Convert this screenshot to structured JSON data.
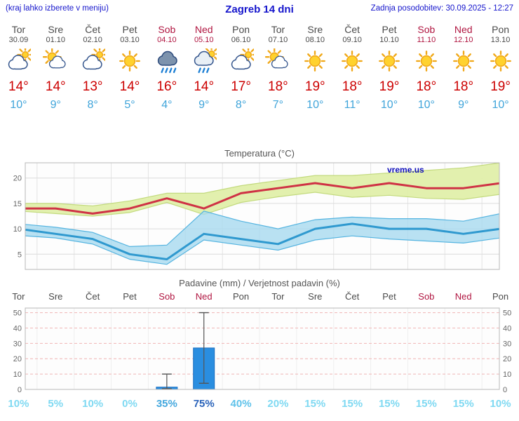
{
  "header": {
    "left_note": "(kraj lahko izberete v meniju)",
    "title": "Zagreb 14 dni",
    "last_update": "Zadnja posodobitev: 30.09.2025 - 12:27"
  },
  "days": [
    {
      "name": "Tor",
      "date": "30.09",
      "weekend": false,
      "icon": "cloud-sun",
      "tmax": "14°",
      "tmin": "10°"
    },
    {
      "name": "Sre",
      "date": "01.10",
      "weekend": false,
      "icon": "sun-cloud",
      "tmax": "14°",
      "tmin": "9°"
    },
    {
      "name": "Čet",
      "date": "02.10",
      "weekend": false,
      "icon": "cloud-sun",
      "tmax": "13°",
      "tmin": "8°"
    },
    {
      "name": "Pet",
      "date": "03.10",
      "weekend": false,
      "icon": "sun",
      "tmax": "14°",
      "tmin": "5°"
    },
    {
      "name": "Sob",
      "date": "04.10",
      "weekend": true,
      "icon": "rain",
      "tmax": "16°",
      "tmin": "4°"
    },
    {
      "name": "Ned",
      "date": "05.10",
      "weekend": true,
      "icon": "sun-rain",
      "tmax": "14°",
      "tmin": "9°"
    },
    {
      "name": "Pon",
      "date": "06.10",
      "weekend": false,
      "icon": "cloud-sun",
      "tmax": "17°",
      "tmin": "8°"
    },
    {
      "name": "Tor",
      "date": "07.10",
      "weekend": false,
      "icon": "sun-cloud",
      "tmax": "18°",
      "tmin": "7°"
    },
    {
      "name": "Sre",
      "date": "08.10",
      "weekend": false,
      "icon": "sun",
      "tmax": "19°",
      "tmin": "10°"
    },
    {
      "name": "Čet",
      "date": "09.10",
      "weekend": false,
      "icon": "sun",
      "tmax": "18°",
      "tmin": "11°"
    },
    {
      "name": "Pet",
      "date": "10.10",
      "weekend": false,
      "icon": "sun",
      "tmax": "19°",
      "tmin": "10°"
    },
    {
      "name": "Sob",
      "date": "11.10",
      "weekend": true,
      "icon": "sun",
      "tmax": "18°",
      "tmin": "10°"
    },
    {
      "name": "Ned",
      "date": "12.10",
      "weekend": true,
      "icon": "sun",
      "tmax": "18°",
      "tmin": "9°"
    },
    {
      "name": "Pon",
      "date": "13.10",
      "weekend": false,
      "icon": "sun",
      "tmax": "19°",
      "tmin": "10°"
    }
  ],
  "chart_data": [
    {
      "type": "line",
      "title": "Temperatura (°C)",
      "watermark": "vreme.us",
      "categories": [
        "Tor 30.09",
        "Sre 01.10",
        "Čet 02.10",
        "Pet 03.10",
        "Sob 04.10",
        "Ned 05.10",
        "Pon 06.10",
        "Tor 07.10",
        "Sre 08.10",
        "Čet 09.10",
        "Pet 10.10",
        "Sob 11.10",
        "Ned 12.10",
        "Pon 13.10"
      ],
      "ylim": [
        2,
        23
      ],
      "yticks": [
        5,
        10,
        15,
        20
      ],
      "legend": "off",
      "grid": "on",
      "series": [
        {
          "name": "max",
          "color": "#cf3245",
          "values": [
            14,
            14,
            13,
            14,
            16,
            14,
            17,
            18,
            19,
            18,
            19,
            18,
            18,
            19
          ]
        },
        {
          "name": "max_hi",
          "values": [
            15,
            15,
            14.5,
            15.5,
            17,
            17,
            18.5,
            19.5,
            20.5,
            20.5,
            21,
            21.5,
            22,
            23
          ]
        },
        {
          "name": "max_lo",
          "values": [
            13.5,
            13,
            12.5,
            13.2,
            15.2,
            12.8,
            15.2,
            16.3,
            17.2,
            16.2,
            16.6,
            16,
            15.8,
            16.8
          ]
        },
        {
          "name": "min",
          "color": "#2f99cf",
          "values": [
            10,
            9,
            8,
            5,
            4,
            9,
            8,
            7,
            10,
            11,
            10,
            10,
            9,
            10
          ]
        },
        {
          "name": "min_hi",
          "values": [
            11,
            10.3,
            9.3,
            6.5,
            6.8,
            13.5,
            11.5,
            10,
            11.8,
            12.3,
            12,
            12,
            11.5,
            13
          ]
        },
        {
          "name": "min_lo",
          "values": [
            8.7,
            8.2,
            7,
            4,
            3,
            7.8,
            6.8,
            5.8,
            7.8,
            8.6,
            8,
            7.6,
            7.2,
            8.2
          ]
        }
      ],
      "band_colors": {
        "max_band": "#e0efaa",
        "max_edge": "#c3da7e",
        "min_band": "#a8d9ef",
        "min_edge": "#55b4e0"
      }
    },
    {
      "type": "bar",
      "title": "Padavine (mm) / Verjetnost padavin (%)",
      "categories": [
        "Tor",
        "Sre",
        "Čet",
        "Pet",
        "Sob",
        "Ned",
        "Pon",
        "Tor",
        "Sre",
        "Čet",
        "Pet",
        "Sob",
        "Ned",
        "Pon"
      ],
      "weekend_indices": [
        4,
        5,
        11,
        12
      ],
      "ylim": [
        0,
        53
      ],
      "yticks": [
        0,
        10,
        20,
        30,
        40,
        50
      ],
      "values_mm": [
        0,
        0,
        0,
        0,
        1.5,
        27,
        0,
        0,
        0,
        0,
        0,
        0,
        0,
        0
      ],
      "range_lo": [
        0,
        0,
        0,
        0,
        0.5,
        4,
        0,
        0,
        0,
        0,
        0,
        0,
        0,
        0
      ],
      "range_hi": [
        0,
        0,
        0,
        0,
        10,
        50,
        0,
        0,
        0,
        0,
        0,
        0,
        0,
        0
      ],
      "bar_color": "#2a8ee0",
      "probabilities": [
        {
          "label": "10%",
          "color": "#7fd9f2"
        },
        {
          "label": "5%",
          "color": "#7fd9f2"
        },
        {
          "label": "10%",
          "color": "#7fd9f2"
        },
        {
          "label": "0%",
          "color": "#7fd9f2"
        },
        {
          "label": "35%",
          "color": "#45a8de"
        },
        {
          "label": "75%",
          "color": "#2a63ba"
        },
        {
          "label": "40%",
          "color": "#5fc2ea"
        },
        {
          "label": "20%",
          "color": "#7fd9f2"
        },
        {
          "label": "15%",
          "color": "#7fd9f2"
        },
        {
          "label": "15%",
          "color": "#7fd9f2"
        },
        {
          "label": "15%",
          "color": "#7fd9f2"
        },
        {
          "label": "15%",
          "color": "#7fd9f2"
        },
        {
          "label": "15%",
          "color": "#7fd9f2"
        },
        {
          "label": "10%",
          "color": "#7fd9f2"
        }
      ]
    }
  ]
}
